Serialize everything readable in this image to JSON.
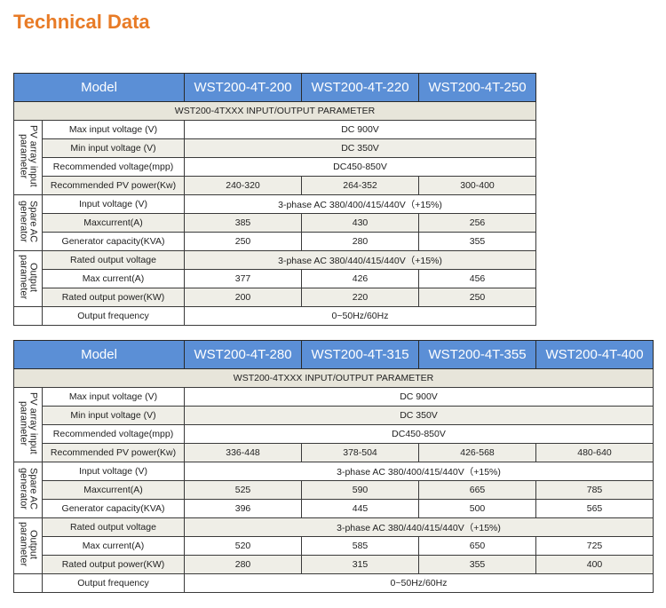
{
  "header": {
    "title": "Technical Data"
  },
  "tables": [
    {
      "model_label": "Model",
      "models": [
        "WST200-4T-200",
        "WST200-4T-220",
        "WST200-4T-250"
      ],
      "param_title": "WST200-4TXXX INPUT/OUTPUT PARAMETER",
      "groups": [
        {
          "label": [
            "PV array input",
            "parameter"
          ],
          "rows": [
            {
              "label": "Max input voltage (V)",
              "values": [
                "DC 900V"
              ]
            },
            {
              "label": "Min input voltage (V)",
              "values": [
                "DC 350V"
              ]
            },
            {
              "label": "Recommended voltage(mpp)",
              "values": [
                "DC450-850V"
              ]
            },
            {
              "label": "Recommended PV power(Kw)",
              "values": [
                "240-320",
                "264-352",
                "300-400"
              ]
            }
          ]
        },
        {
          "label": [
            "Spare AC",
            "generator"
          ],
          "rows": [
            {
              "label": "Input voltage (V)",
              "values": [
                "3-phase AC 380/400/415/440V（+15%)"
              ]
            },
            {
              "label": "Maxcurrent(A)",
              "values": [
                "385",
                "430",
                "256"
              ]
            },
            {
              "label": "Generator capacity(KVA)",
              "values": [
                "250",
                "280",
                "355"
              ]
            }
          ]
        },
        {
          "label": [
            "Output",
            "parameter"
          ],
          "rows": [
            {
              "label": "Rated output voltage",
              "values": [
                "3-phase AC 380/440/415/440V（+15%)"
              ]
            },
            {
              "label": "Max current(A)",
              "values": [
                "377",
                "426",
                "456"
              ]
            },
            {
              "label": "Rated output power(KW)",
              "values": [
                "200",
                "220",
                "250"
              ]
            }
          ]
        },
        {
          "label": null,
          "rows": [
            {
              "label": "Output frequency",
              "values": [
                "0~50Hz/60Hz"
              ]
            }
          ]
        }
      ]
    },
    {
      "model_label": "Model",
      "models": [
        "WST200-4T-280",
        "WST200-4T-315",
        "WST200-4T-355",
        "WST200-4T-400"
      ],
      "param_title": "WST200-4TXXX INPUT/OUTPUT PARAMETER",
      "groups": [
        {
          "label": [
            "PV array input",
            "parameter"
          ],
          "rows": [
            {
              "label": "Max input voltage (V)",
              "values": [
                "DC 900V"
              ]
            },
            {
              "label": "Min input voltage (V)",
              "values": [
                "DC 350V"
              ]
            },
            {
              "label": "Recommended voltage(mpp)",
              "values": [
                "DC450-850V"
              ]
            },
            {
              "label": "Recommended PV power(Kw)",
              "values": [
                "336-448",
                "378-504",
                "426-568",
                "480-640"
              ]
            }
          ]
        },
        {
          "label": [
            "Spare AC",
            "generator"
          ],
          "rows": [
            {
              "label": "Input voltage (V)",
              "values": [
                "3-phase AC 380/400/415/440V（+15%)"
              ]
            },
            {
              "label": "Maxcurrent(A)",
              "values": [
                "525",
                "590",
                "665",
                "785"
              ]
            },
            {
              "label": "Generator capacity(KVA)",
              "values": [
                "396",
                "445",
                "500",
                "565"
              ]
            }
          ]
        },
        {
          "label": [
            "Output",
            "parameter"
          ],
          "rows": [
            {
              "label": "Rated output voltage",
              "values": [
                "3-phase AC 380/440/415/440V（+15%)"
              ]
            },
            {
              "label": "Max current(A)",
              "values": [
                "520",
                "585",
                "650",
                "725"
              ]
            },
            {
              "label": "Rated output power(KW)",
              "values": [
                "280",
                "315",
                "355",
                "400"
              ]
            }
          ]
        },
        {
          "label": null,
          "rows": [
            {
              "label": "Output frequency",
              "values": [
                "0~50Hz/60Hz"
              ]
            }
          ]
        }
      ]
    }
  ]
}
